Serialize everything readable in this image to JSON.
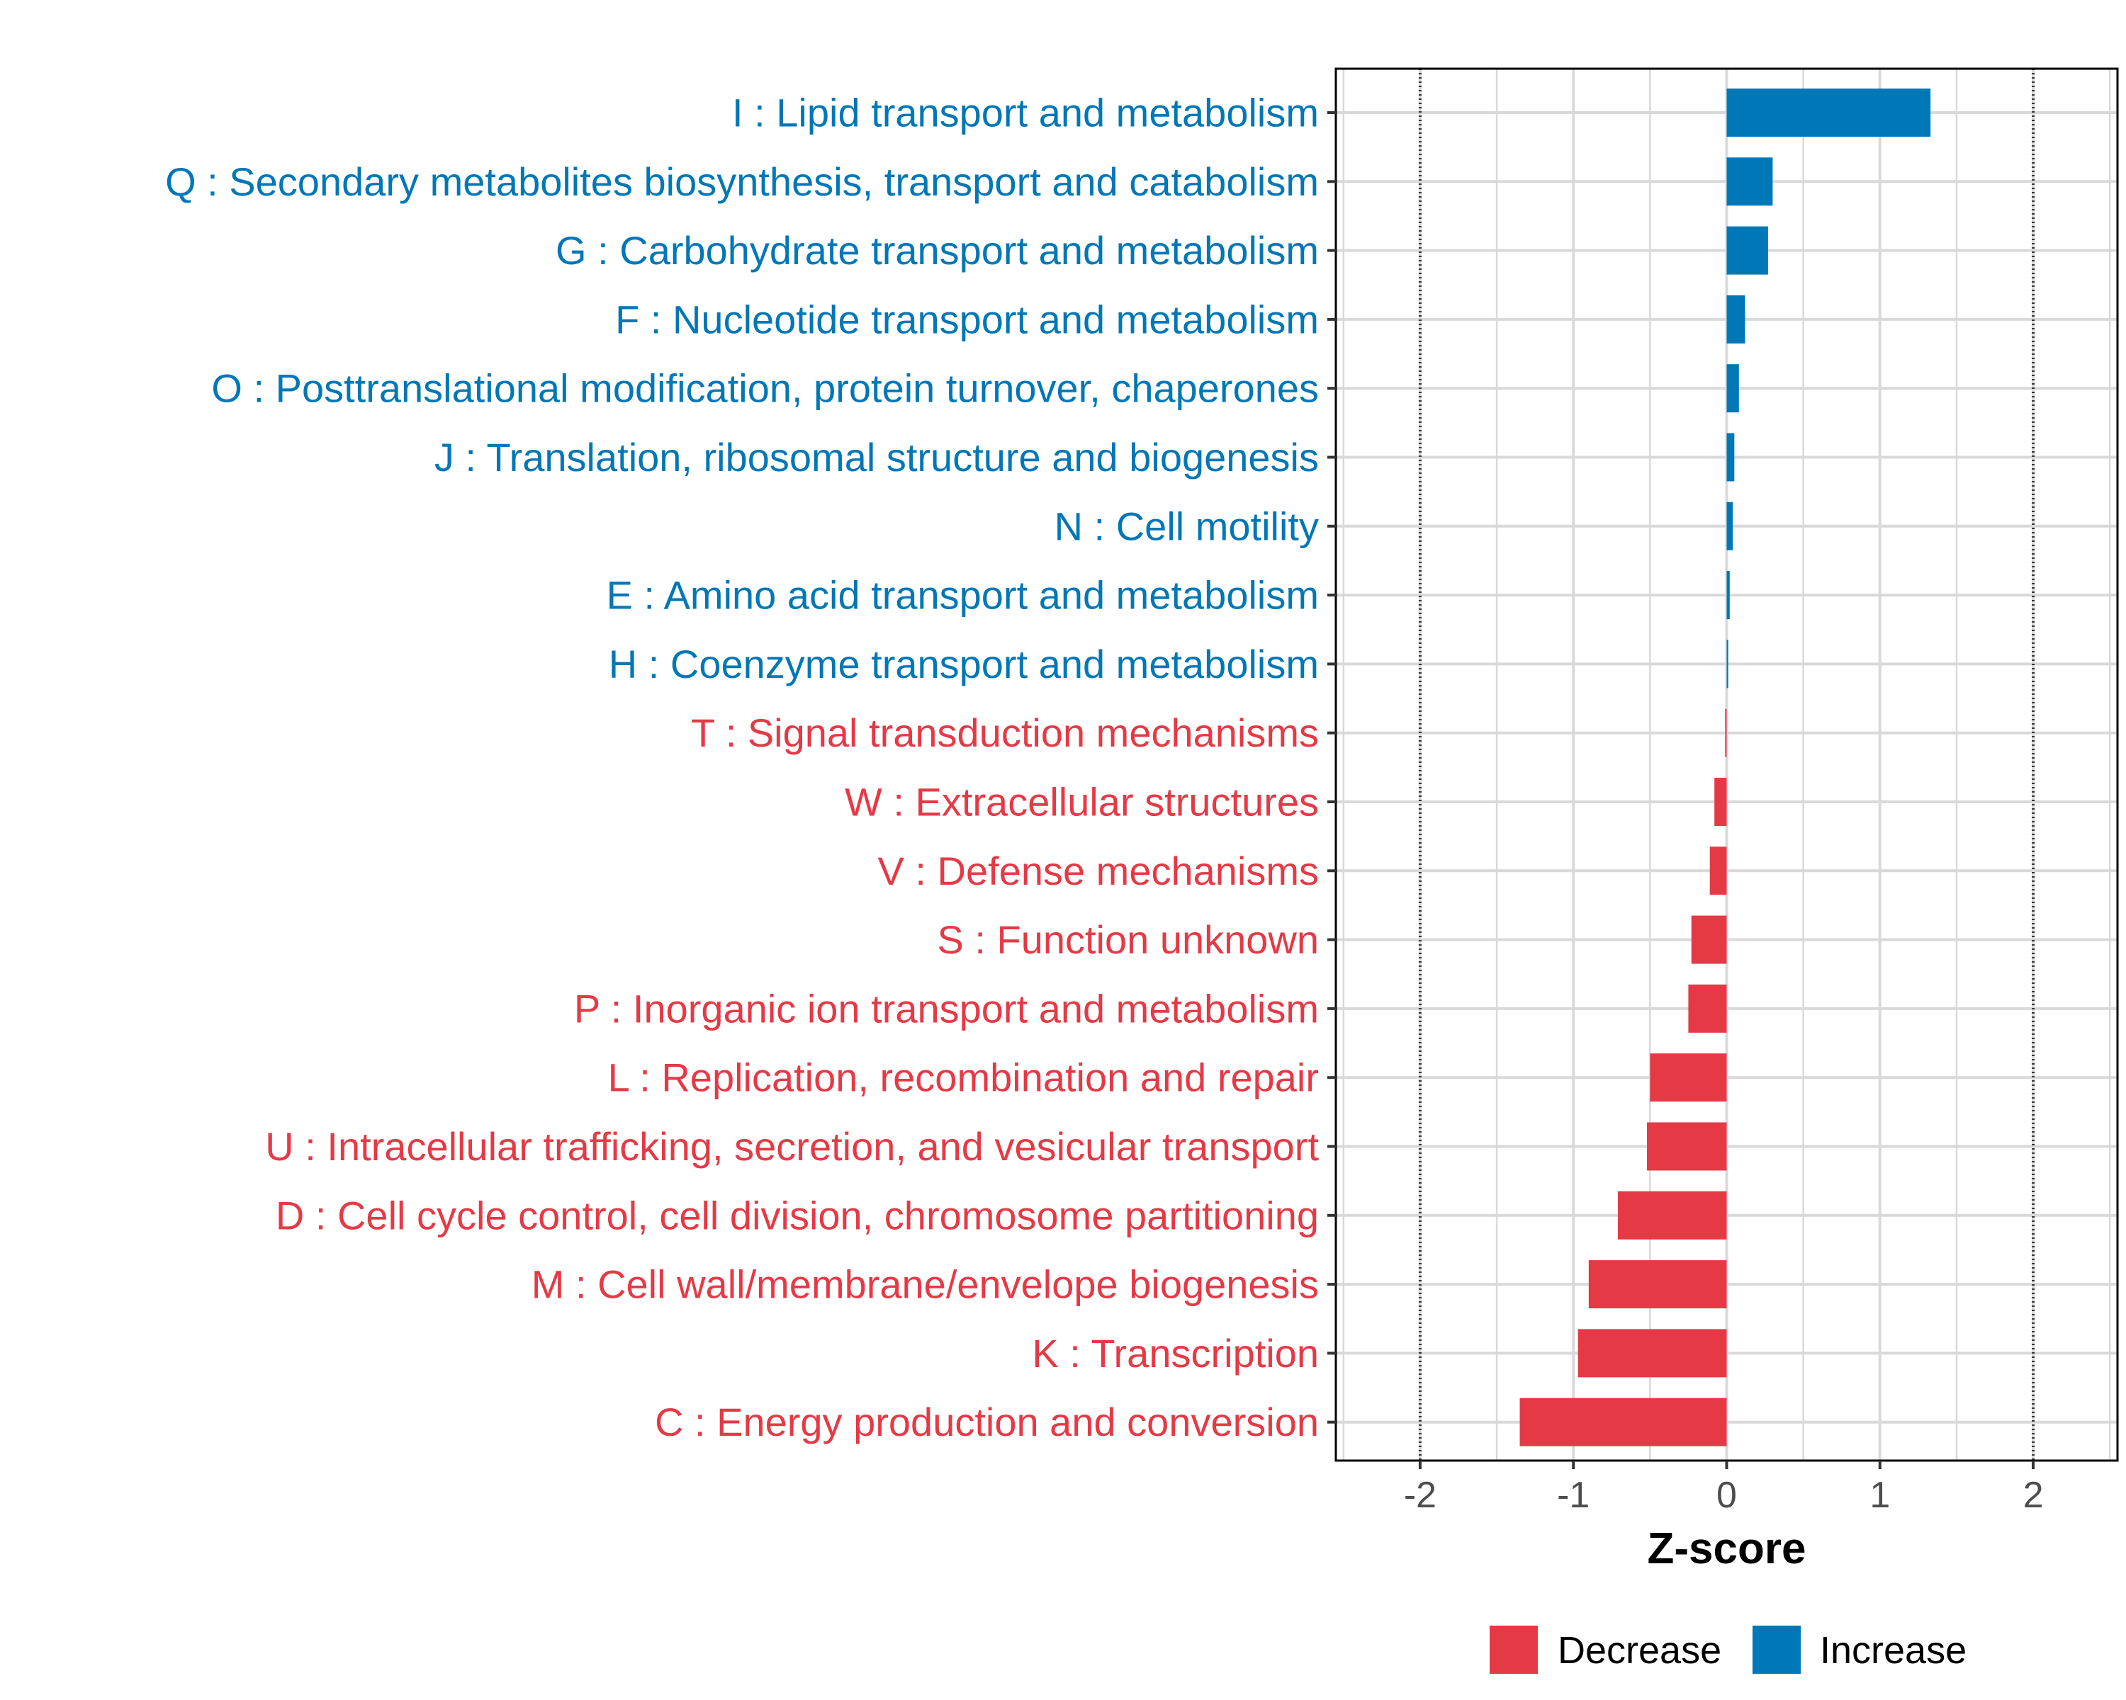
{
  "chart_data": {
    "type": "bar",
    "orientation": "horizontal",
    "title": "",
    "xlabel": "Z-score",
    "ylabel": "",
    "xlim": [
      -2.55,
      2.55
    ],
    "x_ticks": [
      -2,
      -1,
      0,
      1,
      2
    ],
    "x_tick_labels": [
      "-2",
      "-1",
      "0",
      "1",
      "2"
    ],
    "reference_lines": [
      -2,
      2
    ],
    "grid": true,
    "legend_position": "bottom",
    "colors": {
      "Decrease": "#e63946",
      "Increase": "#0077b6"
    },
    "legend": [
      {
        "name": "Decrease",
        "color": "#e63946"
      },
      {
        "name": "Increase",
        "color": "#0077b6"
      }
    ],
    "categories": [
      {
        "label": "I : Lipid transport and metabolism",
        "value": 1.33,
        "group": "Increase"
      },
      {
        "label": "Q : Secondary metabolites biosynthesis, transport and catabolism",
        "value": 0.3,
        "group": "Increase"
      },
      {
        "label": "G : Carbohydrate transport and metabolism",
        "value": 0.27,
        "group": "Increase"
      },
      {
        "label": "F : Nucleotide transport and metabolism",
        "value": 0.12,
        "group": "Increase"
      },
      {
        "label": "O : Posttranslational modification, protein turnover, chaperones",
        "value": 0.08,
        "group": "Increase"
      },
      {
        "label": "J : Translation, ribosomal structure and biogenesis",
        "value": 0.05,
        "group": "Increase"
      },
      {
        "label": "N : Cell motility",
        "value": 0.04,
        "group": "Increase"
      },
      {
        "label": "E : Amino acid transport and metabolism",
        "value": 0.02,
        "group": "Increase"
      },
      {
        "label": "H : Coenzyme transport and metabolism",
        "value": 0.01,
        "group": "Increase"
      },
      {
        "label": "T : Signal transduction mechanisms",
        "value": -0.01,
        "group": "Decrease"
      },
      {
        "label": "W : Extracellular structures",
        "value": -0.08,
        "group": "Decrease"
      },
      {
        "label": "V : Defense mechanisms",
        "value": -0.11,
        "group": "Decrease"
      },
      {
        "label": "S : Function unknown",
        "value": -0.23,
        "group": "Decrease"
      },
      {
        "label": "P : Inorganic ion transport and metabolism",
        "value": -0.25,
        "group": "Decrease"
      },
      {
        "label": "L : Replication, recombination and repair",
        "value": -0.5,
        "group": "Decrease"
      },
      {
        "label": "U : Intracellular trafficking, secretion, and vesicular transport",
        "value": -0.52,
        "group": "Decrease"
      },
      {
        "label": "D : Cell cycle control, cell division, chromosome partitioning",
        "value": -0.71,
        "group": "Decrease"
      },
      {
        "label": "M : Cell wall/membrane/envelope biogenesis",
        "value": -0.9,
        "group": "Decrease"
      },
      {
        "label": "K : Transcription",
        "value": -0.97,
        "group": "Decrease"
      },
      {
        "label": "C : Energy production and conversion",
        "value": -1.35,
        "group": "Decrease"
      }
    ]
  }
}
